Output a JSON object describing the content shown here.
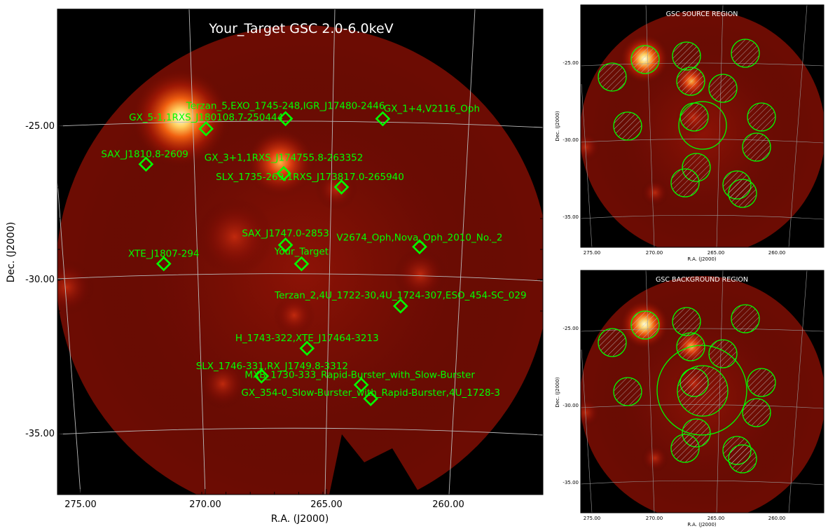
{
  "main_panel": {
    "title": "Your_Target GSC 2.0-6.0keV",
    "xlabel": "R.A. (J2000)",
    "ylabel": "Dec. (J2000)",
    "x_ticks": [
      "275.00",
      "270.00",
      "265.00",
      "260.00"
    ],
    "y_ticks": [
      "-25.00",
      "-30.00",
      "-35.00"
    ],
    "sources": [
      {
        "label": "Terzan_5,EXO_1745-248,IGR_J17480-2446",
        "ra": 267.02,
        "dec": -24.78
      },
      {
        "label": "GX_1+4,V2116_Oph",
        "ra": 263.01,
        "dec": -24.75
      },
      {
        "label": "GX_5-1,1RXS_J180108.7-250444",
        "ra": 270.28,
        "dec": -25.07
      },
      {
        "label": "SAX_J1810.8-2609",
        "ra": 272.69,
        "dec": -26.15
      },
      {
        "label": "GX_3+1,1RXS_J174755.8-263352",
        "ra": 266.98,
        "dec": -26.56
      },
      {
        "label": "SLX_1735-269,1RXS_J173817.0-265940",
        "ra": 264.57,
        "dec": -26.99
      },
      {
        "label": "SAX_J1747.0-2853",
        "ra": 266.76,
        "dec": -28.88
      },
      {
        "label": "Your_Target",
        "ra": 266.06,
        "dec": -29.49
      },
      {
        "label": "V2674_Oph,Nova_Oph_2010_No._2",
        "ra": 261.23,
        "dec": -28.86
      },
      {
        "label": "XTE_J1807-294",
        "ra": 271.75,
        "dec": -29.41
      },
      {
        "label": "Terzan_2,4U_1722-30,4U_1724-307,ESO_454-SC_029",
        "ra": 261.89,
        "dec": -30.8
      },
      {
        "label": "H_1743-322,XTE_J17464-3213",
        "ra": 265.66,
        "dec": -32.23
      },
      {
        "label": "SLX_1746-331,RX_J1749.8-3312",
        "ra": 267.48,
        "dec": -33.13
      },
      {
        "label": "MXB_1730-333_Rapid-Burster_with_Slow-Burster",
        "ra": 263.35,
        "dec": -33.39
      },
      {
        "label": "GX_354-0_Slow-Burster_with_Rapid-Burster,4U_1728-3",
        "ra": 262.93,
        "dec": -33.83
      }
    ]
  },
  "source_panel": {
    "title": "GSC SOURCE REGION",
    "xlabel": "R.A. (J2000)",
    "ylabel": "Dec. (J2000)",
    "x_ticks": [
      "275.00",
      "270.00",
      "265.00",
      "260.00"
    ],
    "y_ticks": [
      "-25.00",
      "-30.00",
      "-35.00"
    ]
  },
  "background_panel": {
    "title": "GSC BACKGROUND REGION",
    "xlabel": "R.A. (J2000)",
    "ylabel": "Dec. (J2000)",
    "x_ticks": [
      "275.00",
      "270.00",
      "265.00",
      "260.00"
    ],
    "y_ticks": [
      "-25.00",
      "-30.00",
      "-35.00"
    ]
  },
  "colors": {
    "marker": "#00ff00",
    "sky_background": "#000000",
    "grid": "#bbbbbb"
  }
}
